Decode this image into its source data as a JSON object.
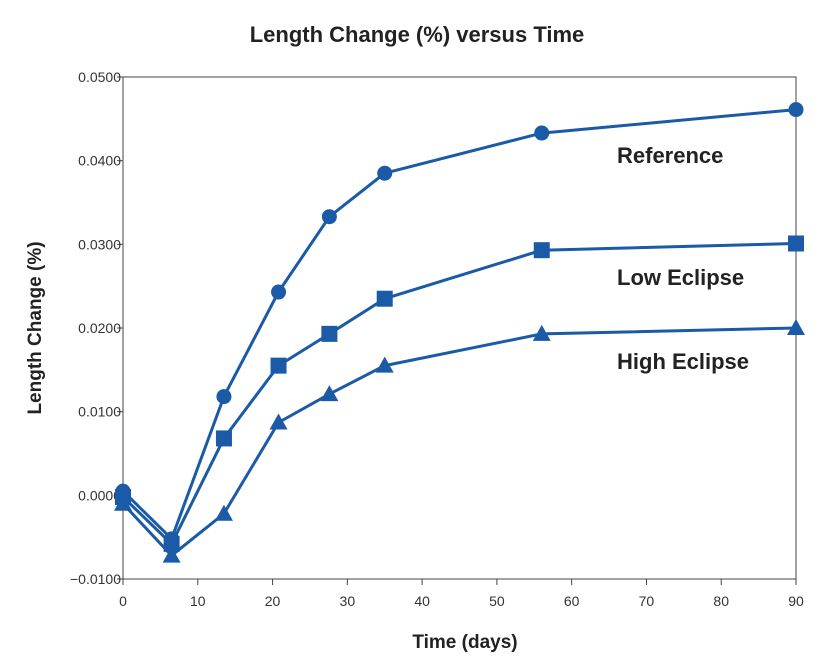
{
  "chart_data": {
    "type": "line",
    "title": "Length Change (%) versus Time",
    "xlabel": "Time (days)",
    "ylabel": "Length Change (%)",
    "xlim": [
      0,
      90
    ],
    "ylim": [
      -0.01,
      0.05
    ],
    "x_ticks": [
      "0",
      "10",
      "20",
      "30",
      "40",
      "50",
      "60",
      "70",
      "80",
      "90"
    ],
    "y_ticks": [
      "−0.0100",
      "0.0000",
      "0.0100",
      "0.0200",
      "0.0300",
      "0.0400",
      "0.0500"
    ],
    "grid": false,
    "line_color": "#1a5aa6",
    "series": [
      {
        "name": "Reference",
        "marker": "circle",
        "x": [
          0,
          6.5,
          13.5,
          20.8,
          27.6,
          35,
          56,
          90
        ],
        "y": [
          0.0005,
          -0.0052,
          0.0118,
          0.0243,
          0.0333,
          0.0385,
          0.0433,
          0.0461
        ]
      },
      {
        "name": "Low Eclipse",
        "marker": "square",
        "x": [
          0,
          6.5,
          13.5,
          20.8,
          27.6,
          35,
          56,
          90
        ],
        "y": [
          -0.0002,
          -0.0058,
          0.0068,
          0.0155,
          0.0193,
          0.0235,
          0.0293,
          0.0301
        ]
      },
      {
        "name": "High Eclipse",
        "marker": "triangle",
        "x": [
          0,
          6.5,
          13.5,
          20.8,
          27.6,
          35,
          56,
          90
        ],
        "y": [
          -0.001,
          -0.0072,
          -0.0022,
          0.0087,
          0.0121,
          0.0155,
          0.0193,
          0.02
        ]
      }
    ]
  }
}
